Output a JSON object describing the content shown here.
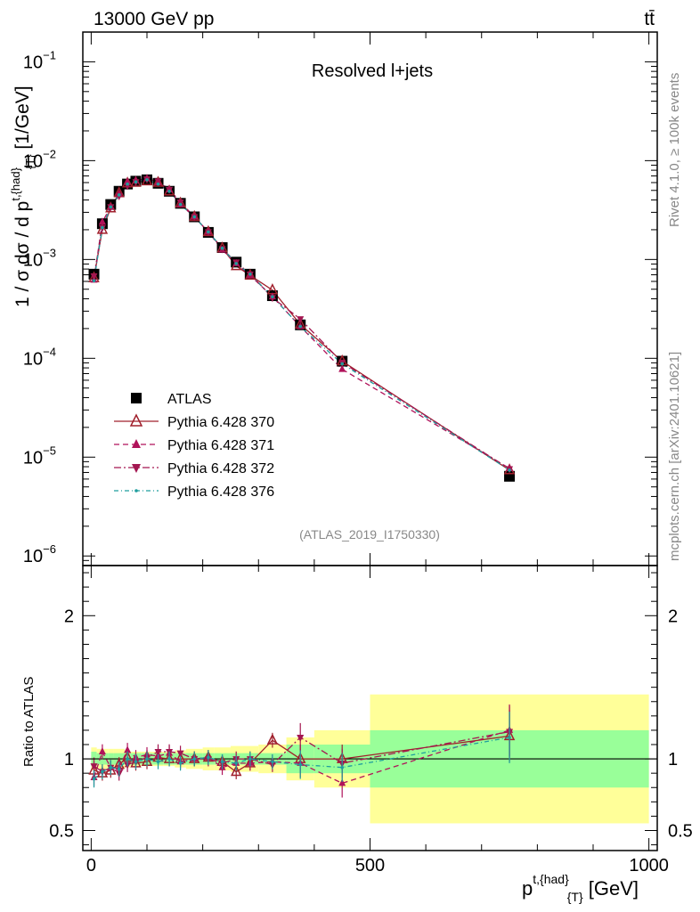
{
  "header": {
    "energy_label": "13000 GeV pp",
    "process_label": "tt̄",
    "side_top": "Rivet 4.1.0, ≥ 100k events",
    "side_bottom": "mcplots.cern.ch [arXiv:2401.10621]",
    "panel_title": "Resolved l+jets",
    "analysis_id": "(ATLAS_2019_I1750330)"
  },
  "colors": {
    "data": "#000000",
    "p370": "#a0202c",
    "p371": "#b0125a",
    "p372": "#a31650",
    "p376": "#1f9e9e",
    "band_inner": "#99ff99",
    "band_outer": "#ffff99"
  },
  "chart_data": [
    {
      "type": "line",
      "panel": "main",
      "title": "Resolved l+jets",
      "ylabel": "1 / σ dσ / d p^{t,{had}}_{T} [1/GeV]",
      "xlabel": "",
      "xlim": [
        -15,
        1015
      ],
      "ylim": [
        8e-07,
        0.2
      ],
      "yscale": "log",
      "ytick_labels": [
        "10^{-6}",
        "10^{-5}",
        "10^{-4}",
        "10^{-3}",
        "10^{-2}",
        "10^{-1}"
      ],
      "legend_position": "center-left",
      "x": [
        5,
        20,
        35,
        50,
        65,
        80,
        100,
        120,
        140,
        160,
        185,
        210,
        235,
        260,
        285,
        325,
        375,
        450,
        750
      ],
      "series": [
        {
          "name": "ATLAS",
          "marker": "square",
          "style": "points",
          "values": [
            0.00071,
            0.0023,
            0.0036,
            0.0049,
            0.0058,
            0.0062,
            0.0064,
            0.0059,
            0.0049,
            0.0037,
            0.0027,
            0.00188,
            0.00132,
            0.00094,
            0.00071,
            0.00043,
            0.000218,
            9.35e-05,
            6.4e-06
          ]
        },
        {
          "name": "Pythia 6.428 370",
          "marker": "open-triangle-up",
          "style": "solid",
          "values": [
            0.00065,
            0.002,
            0.0033,
            0.0047,
            0.0059,
            0.006,
            0.0062,
            0.006,
            0.0049,
            0.0037,
            0.0027,
            0.0019,
            0.0013,
            0.00086,
            0.00069,
            0.00049,
            0.00022,
            9.35e-05,
            7.4e-06
          ]
        },
        {
          "name": "Pythia 6.428 371",
          "marker": "triangle-up",
          "style": "dashed",
          "values": [
            0.00062,
            0.0024,
            0.0034,
            0.0046,
            0.0061,
            0.0063,
            0.0066,
            0.006,
            0.0051,
            0.0036,
            0.0027,
            0.0019,
            0.00125,
            0.00091,
            0.00069,
            0.00042,
            0.00021,
            7.75e-05,
            7.7e-06
          ]
        },
        {
          "name": "Pythia 6.428 372",
          "marker": "triangle-down",
          "style": "dashdot",
          "values": [
            0.00068,
            0.0021,
            0.0034,
            0.0044,
            0.0056,
            0.0061,
            0.0065,
            0.0062,
            0.0051,
            0.0038,
            0.0027,
            0.0019,
            0.00128,
            0.00094,
            0.00071,
            0.00041,
            0.00025,
            9.1e-05,
            7.6e-06
          ]
        },
        {
          "name": "Pythia 6.428 376",
          "marker": "dot",
          "style": "dashdotted",
          "values": [
            0.00061,
            0.0021,
            0.0034,
            0.0045,
            0.0058,
            0.0061,
            0.0064,
            0.0058,
            0.0049,
            0.0036,
            0.0027,
            0.0019,
            0.0013,
            0.00091,
            0.00071,
            0.00042,
            0.00021,
            8.8e-05,
            7.4e-06
          ]
        }
      ],
      "legend": [
        "ATLAS",
        "Pythia 6.428 370",
        "Pythia 6.428 371",
        "Pythia 6.428 372",
        "Pythia 6.428 376"
      ]
    },
    {
      "type": "line",
      "panel": "ratio",
      "ylabel": "Ratio to ATLAS",
      "xlabel": "p^{t,{had}}_{T} [GeV]",
      "xlim": [
        -15,
        1015
      ],
      "ylim": [
        0.36,
        2.35
      ],
      "ytick_labels": [
        "0.5",
        "1",
        "2"
      ],
      "xtick_labels": [
        "0",
        "500",
        "1000"
      ],
      "bins": [
        [
          0,
          10
        ],
        [
          10,
          30
        ],
        [
          30,
          40
        ],
        [
          40,
          60
        ],
        [
          60,
          70
        ],
        [
          70,
          90
        ],
        [
          90,
          110
        ],
        [
          110,
          130
        ],
        [
          130,
          150
        ],
        [
          150,
          170
        ],
        [
          170,
          200
        ],
        [
          200,
          220
        ],
        [
          220,
          250
        ],
        [
          250,
          270
        ],
        [
          270,
          300
        ],
        [
          300,
          350
        ],
        [
          350,
          400
        ],
        [
          400,
          500
        ],
        [
          500,
          1000
        ]
      ],
      "band_inner_halfwidth": [
        0.05,
        0.04,
        0.04,
        0.04,
        0.04,
        0.04,
        0.04,
        0.04,
        0.04,
        0.04,
        0.04,
        0.04,
        0.04,
        0.04,
        0.04,
        0.04,
        0.1,
        0.1,
        0.2
      ],
      "band_outer_halfwidth": [
        0.08,
        0.07,
        0.07,
        0.07,
        0.06,
        0.05,
        0.05,
        0.05,
        0.05,
        0.06,
        0.07,
        0.08,
        0.08,
        0.09,
        0.09,
        0.1,
        0.15,
        0.2,
        0.45
      ],
      "x": [
        5,
        20,
        35,
        50,
        65,
        80,
        100,
        120,
        140,
        160,
        185,
        210,
        235,
        260,
        285,
        325,
        375,
        450,
        750
      ],
      "series": [
        {
          "name": "Pythia 6.428 370",
          "values": [
            0.92,
            0.9,
            0.92,
            0.96,
            1.01,
            0.97,
            0.98,
            1.01,
            1.0,
            1.0,
            1.0,
            1.01,
            0.98,
            0.91,
            0.97,
            1.13,
            1.0,
            1.0,
            1.16
          ]
        },
        {
          "name": "Pythia 6.428 371",
          "values": [
            0.87,
            1.05,
            0.94,
            0.94,
            1.06,
            1.01,
            1.03,
            1.02,
            1.04,
            0.98,
            1.0,
            1.01,
            0.94,
            0.97,
            0.97,
            0.98,
            0.97,
            0.83,
            1.2
          ]
        },
        {
          "name": "Pythia 6.428 372",
          "values": [
            0.95,
            0.91,
            0.94,
            0.9,
            0.96,
            0.98,
            1.01,
            1.05,
            1.05,
            1.04,
            1.0,
            1.0,
            0.97,
            1.0,
            1.0,
            0.96,
            1.15,
            0.97,
            1.19
          ]
        },
        {
          "name": "Pythia 6.428 376",
          "values": [
            0.86,
            0.91,
            0.94,
            0.93,
            1.0,
            0.98,
            1.0,
            0.98,
            1.0,
            0.97,
            1.0,
            1.01,
            0.98,
            0.97,
            1.0,
            0.98,
            0.96,
            0.94,
            1.15
          ]
        }
      ]
    }
  ]
}
